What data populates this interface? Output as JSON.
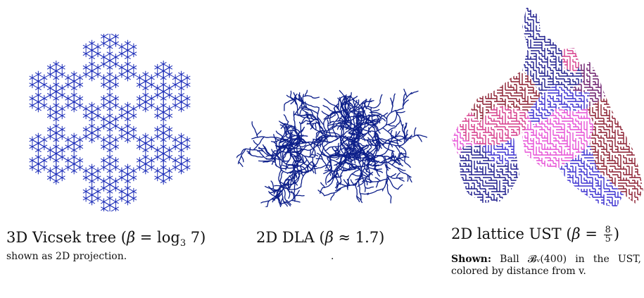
{
  "panels": [
    {
      "caption": "3D Vicsek tree (β = log₃ 7)",
      "caption_parts": [
        "3D Vicsek tree (",
        "β",
        " = log",
        "3",
        " 7)"
      ],
      "subcaption": "shown as 2D projection.",
      "color": "#1a2bb8"
    },
    {
      "caption": "2D DLA (β ≈ 1.7)",
      "caption_parts": [
        "2D DLA (",
        "β",
        " ≈ 1.7)"
      ],
      "subcaption": ".",
      "color": "#0d1f8a"
    },
    {
      "caption": "2D lattice UST (β = 8/5)",
      "caption_parts": [
        "2D lattice UST (",
        "β",
        " = ",
        "8",
        "5",
        ")"
      ],
      "subcaption_bold": "Shown:",
      "subcaption": "Ball 𝓑ᵥ(400) in the UST, colored by distance from v.",
      "colors": [
        "#1b1a8c",
        "#3a2fd0",
        "#8a1c2e",
        "#d63a8a",
        "#e64fd6",
        "#6a1a6a",
        "#2a2a8a"
      ]
    }
  ]
}
